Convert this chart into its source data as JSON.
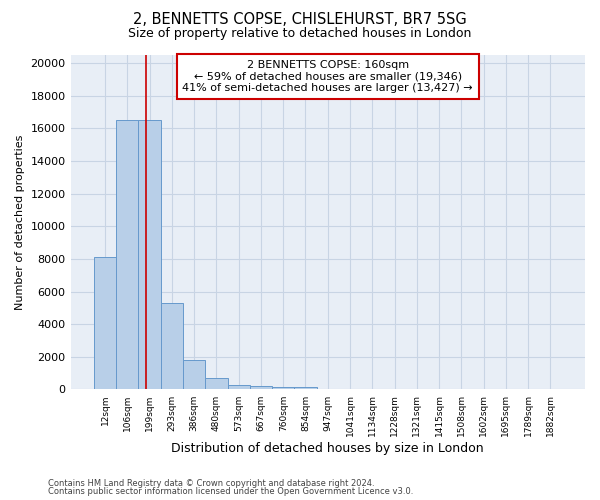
{
  "title1": "2, BENNETTS COPSE, CHISLEHURST, BR7 5SG",
  "title2": "Size of property relative to detached houses in London",
  "xlabel": "Distribution of detached houses by size in London",
  "ylabel": "Number of detached properties",
  "bar_labels": [
    "12sqm",
    "106sqm",
    "199sqm",
    "293sqm",
    "386sqm",
    "480sqm",
    "573sqm",
    "667sqm",
    "760sqm",
    "854sqm",
    "947sqm",
    "1041sqm",
    "1134sqm",
    "1228sqm",
    "1321sqm",
    "1415sqm",
    "1508sqm",
    "1602sqm",
    "1695sqm",
    "1789sqm",
    "1882sqm"
  ],
  "bar_values": [
    8100,
    16500,
    16500,
    5300,
    1800,
    700,
    300,
    220,
    150,
    150,
    0,
    0,
    0,
    0,
    0,
    0,
    0,
    0,
    0,
    0,
    0
  ],
  "bar_color": "#b8cfe8",
  "bar_edge_color": "#6699cc",
  "annotation_text": "2 BENNETTS COPSE: 160sqm\n← 59% of detached houses are smaller (19,346)\n41% of semi-detached houses are larger (13,427) →",
  "vline_x": 1.85,
  "vline_color": "#cc0000",
  "annotation_box_color": "#ffffff",
  "annotation_box_edge": "#cc0000",
  "ylim": [
    0,
    20500
  ],
  "yticks": [
    0,
    2000,
    4000,
    6000,
    8000,
    10000,
    12000,
    14000,
    16000,
    18000,
    20000
  ],
  "footer1": "Contains HM Land Registry data © Crown copyright and database right 2024.",
  "footer2": "Contains public sector information licensed under the Open Government Licence v3.0.",
  "grid_color": "#c8d4e4",
  "bg_color": "#e8eef6"
}
